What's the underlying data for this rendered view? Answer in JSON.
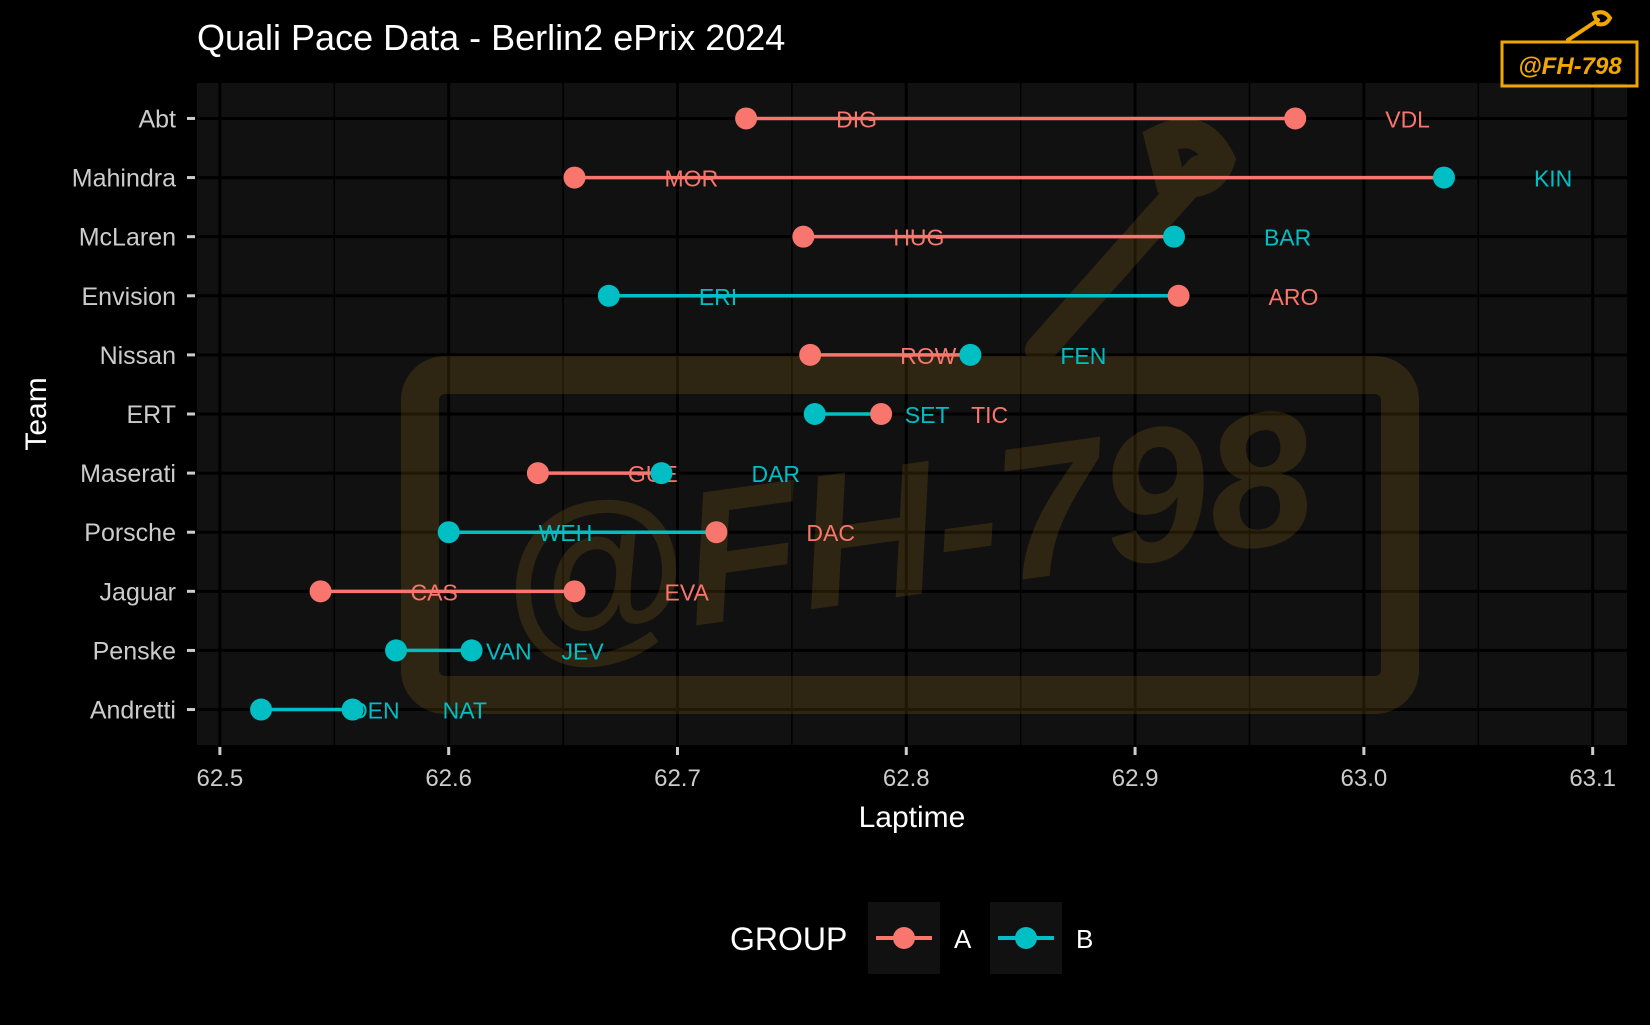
{
  "chart_data": {
    "type": "dumbbell",
    "title": "Quali Pace Data - Berlin2 ePrix 2024",
    "xlabel": "Laptime",
    "ylabel": "Team",
    "xlim": [
      62.49,
      63.115
    ],
    "x_ticks": [
      62.5,
      62.6,
      62.7,
      62.8,
      62.9,
      63.0,
      63.1
    ],
    "x_tick_labels": [
      "62.5",
      "62.6",
      "62.7",
      "62.8",
      "62.9",
      "63.0",
      "63.1"
    ],
    "grid": true,
    "legend": {
      "title": "GROUP",
      "position": "bottom",
      "entries": [
        {
          "key": "A",
          "label": "A"
        },
        {
          "key": "B",
          "label": "B"
        }
      ]
    },
    "colors": {
      "A": "#F8766D",
      "B": "#00BFC4"
    },
    "rows": [
      {
        "team": "Abt",
        "line_group": "A",
        "p1": {
          "x": 62.73,
          "group": "A",
          "driver": "DIG"
        },
        "p2": {
          "x": 62.97,
          "group": "A",
          "driver": "VDL"
        }
      },
      {
        "team": "Mahindra",
        "line_group": "A",
        "p1": {
          "x": 62.655,
          "group": "A",
          "driver": "MOR"
        },
        "p2": {
          "x": 63.035,
          "group": "B",
          "driver": "KIN"
        }
      },
      {
        "team": "McLaren",
        "line_group": "A",
        "p1": {
          "x": 62.755,
          "group": "A",
          "driver": "HUG"
        },
        "p2": {
          "x": 62.917,
          "group": "B",
          "driver": "BAR"
        }
      },
      {
        "team": "Envision",
        "line_group": "B",
        "p1": {
          "x": 62.67,
          "group": "B",
          "driver": "ERI"
        },
        "p2": {
          "x": 62.919,
          "group": "A",
          "driver": "ARO"
        }
      },
      {
        "team": "Nissan",
        "line_group": "A",
        "p1": {
          "x": 62.758,
          "group": "A",
          "driver": "ROW"
        },
        "p2": {
          "x": 62.828,
          "group": "B",
          "driver": "FEN"
        }
      },
      {
        "team": "ERT",
        "line_group": "B",
        "p1": {
          "x": 62.76,
          "group": "B",
          "driver": "SET"
        },
        "p2": {
          "x": 62.789,
          "group": "A",
          "driver": "TIC"
        }
      },
      {
        "team": "Maserati",
        "line_group": "A",
        "p1": {
          "x": 62.639,
          "group": "A",
          "driver": "GUE"
        },
        "p2": {
          "x": 62.693,
          "group": "B",
          "driver": "DAR"
        }
      },
      {
        "team": "Porsche",
        "line_group": "B",
        "p1": {
          "x": 62.6,
          "group": "B",
          "driver": "WEH"
        },
        "p2": {
          "x": 62.717,
          "group": "A",
          "driver": "DAC"
        }
      },
      {
        "team": "Jaguar",
        "line_group": "A",
        "p1": {
          "x": 62.544,
          "group": "A",
          "driver": "CAS"
        },
        "p2": {
          "x": 62.655,
          "group": "A",
          "driver": "EVA"
        }
      },
      {
        "team": "Penske",
        "line_group": "B",
        "p1": {
          "x": 62.577,
          "group": "B",
          "driver": "VAN"
        },
        "p2": {
          "x": 62.61,
          "group": "B",
          "driver": "JEV"
        }
      },
      {
        "team": "Andretti",
        "line_group": "B",
        "p1": {
          "x": 62.518,
          "group": "B",
          "driver": "DEN"
        },
        "p2": {
          "x": 62.558,
          "group": "B",
          "driver": "NAT"
        }
      }
    ]
  },
  "watermark": {
    "text": "@FH-798"
  }
}
